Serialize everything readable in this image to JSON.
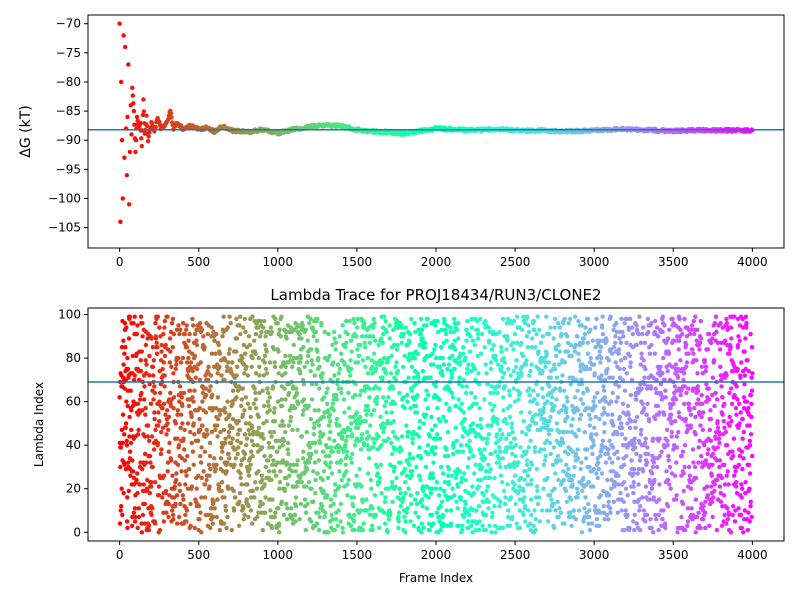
{
  "chart_data": [
    {
      "type": "scatter",
      "title": "",
      "xlabel": "",
      "ylabel": "ΔG (kT)",
      "xlim": [
        -200,
        4200
      ],
      "ylim": [
        -108.5,
        -68.5
      ],
      "xticks": [
        0,
        500,
        1000,
        1500,
        2000,
        2500,
        3000,
        3500,
        4000
      ],
      "yticks": [
        -105,
        -100,
        -95,
        -90,
        -85,
        -80,
        -75,
        -70
      ],
      "hline": {
        "y": -88.2,
        "color": "#1f77b4"
      },
      "grid": false,
      "colormap": "rainbow (red at frame 0 to violet at frame 4000)",
      "series": [
        {
          "x": [
            0,
            5,
            10,
            15,
            20,
            25,
            30,
            35,
            40,
            45,
            50,
            55,
            60,
            65,
            70,
            75,
            80,
            90,
            100,
            110,
            120,
            130,
            140,
            150,
            160,
            170,
            180,
            200,
            220,
            240,
            260,
            280,
            300,
            320,
            340,
            360,
            400,
            450,
            500,
            550,
            600,
            650,
            700,
            800,
            900,
            1000,
            1100,
            1200,
            1300,
            1400,
            1500,
            1600,
            1700,
            1800,
            1900,
            2000,
            2100,
            2200,
            2300,
            2400,
            2500,
            2600,
            2700,
            2800,
            2900,
            3000,
            3100,
            3200,
            3300,
            3400,
            3500,
            3600,
            3700,
            3800,
            3900,
            4000
          ],
          "y": [
            -70,
            -104,
            -80,
            -90,
            -100,
            -72,
            -93,
            -74,
            -88,
            -96,
            -86,
            -77,
            -101,
            -92,
            -84,
            -89,
            -81,
            -85,
            -92,
            -86,
            -88,
            -87,
            -91,
            -83,
            -89,
            -86,
            -90,
            -87,
            -88.5,
            -86,
            -88,
            -87.5,
            -87,
            -85,
            -88,
            -87,
            -88,
            -87.5,
            -88.2,
            -87.8,
            -88.5,
            -87.6,
            -88.3,
            -88.6,
            -88.2,
            -88.8,
            -88.1,
            -87.7,
            -87.4,
            -87.6,
            -88.2,
            -88.5,
            -88.6,
            -88.9,
            -88.4,
            -88,
            -88.1,
            -88.3,
            -88.2,
            -88.1,
            -88.3,
            -88.4,
            -88.3,
            -88.5,
            -88.4,
            -88.3,
            -88.2,
            -88.1,
            -88.2,
            -88.3,
            -88.4,
            -88.3,
            -88.3,
            -88.3,
            -88.3,
            -88.3
          ]
        }
      ]
    },
    {
      "type": "scatter",
      "title": "Lambda Trace for PROJ18434/RUN3/CLONE2",
      "xlabel": "Frame Index",
      "ylabel": "Lambda Index",
      "xlim": [
        -200,
        4200
      ],
      "ylim": [
        -4,
        103
      ],
      "xticks": [
        0,
        500,
        1000,
        1500,
        2000,
        2500,
        3000,
        3500,
        4000
      ],
      "yticks": [
        0,
        20,
        40,
        60,
        80,
        100
      ],
      "hline": {
        "y": 69,
        "color": "#1f77b4"
      },
      "grid": false,
      "colormap": "rainbow (red at frame 0 to violet at frame 4000)",
      "series": [
        {
          "frames": 4000,
          "lambda_range": [
            0,
            99
          ],
          "distribution": "approximately uniform random lambda index per frame"
        }
      ]
    }
  ]
}
